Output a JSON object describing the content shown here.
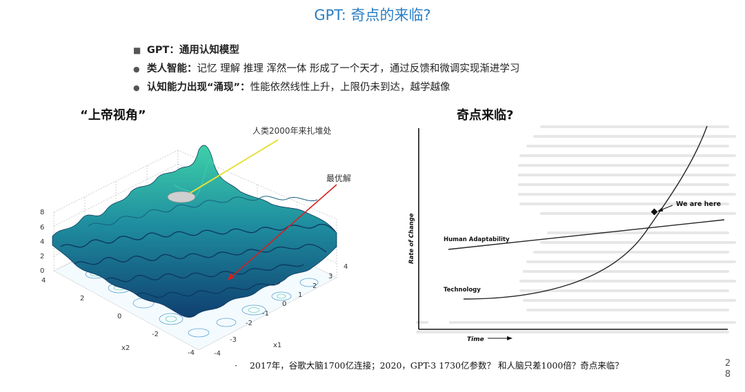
{
  "title": "GPT: 奇点的来临?",
  "bullets": [
    {
      "marker": "■",
      "bold": "GPT：通用认知模型",
      "text": ""
    },
    {
      "marker": "●",
      "bold": "类人智能：",
      "text": "记忆 理解 推理 浑然一体 形成了一个天才，通过反馈和微调实现渐进学习"
    },
    {
      "marker": "●",
      "bold": "认知能力出现“涌现”：",
      "text": "性能依然线性上升，上限仍未到达，越学越像"
    }
  ],
  "left_figure": {
    "heading": "“上帝视角”",
    "annot_2000": "人类2000年来扎堆处",
    "annot_optimal": "最优解",
    "z_ticks": [
      "8",
      "6",
      "4",
      "2",
      "0"
    ],
    "x2_ticks": [
      "4",
      "2",
      "0",
      "-2",
      "-4"
    ],
    "x1_ticks": [
      "4",
      "3",
      "2",
      "1",
      "0",
      "-1",
      "-2",
      "-3",
      "-4"
    ],
    "x1_label": "x1",
    "x2_label": "x2",
    "colors": {
      "surface_dark": "#0f3f70",
      "surface_mid": "#1f8fa0",
      "surface_light": "#3fd0a8",
      "arrow_yellow": "#e6e03a",
      "arrow_red": "#d62020"
    }
  },
  "right_figure": {
    "heading": "奇点来临?",
    "we_are_here": "We are here",
    "human_adaptability": "Human Adaptability",
    "technology": "Technology",
    "y_label": "Rate of Change",
    "x_label": "Time"
  },
  "caption": {
    "bullet": "·",
    "text": "2017年，谷歌大脑1700亿连接；2020，GPT-3 1730亿参数？ 和人脑只差1000倍？奇点来临？"
  },
  "page_number": "28"
}
